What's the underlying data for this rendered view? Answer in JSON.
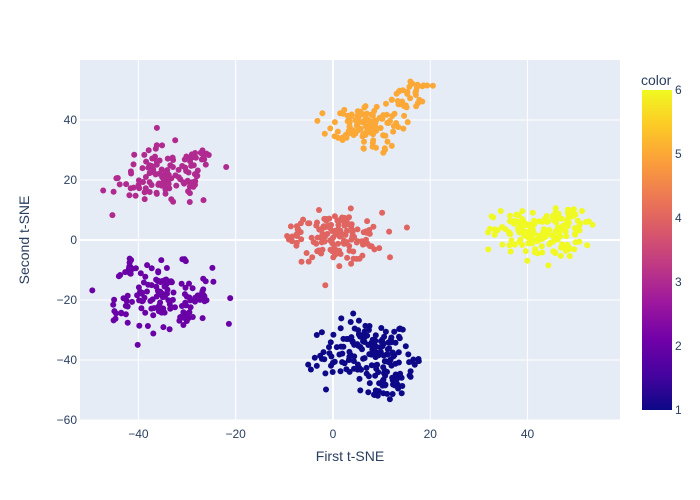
{
  "chart_data": {
    "type": "scatter",
    "xlabel": "First t-SNE",
    "ylabel": "Second t-SNE",
    "xlim": [
      -52,
      59
    ],
    "ylim": [
      -60,
      60
    ],
    "x_ticks": [
      -40,
      -20,
      0,
      20,
      40
    ],
    "y_ticks": [
      -60,
      -40,
      -20,
      0,
      20,
      40
    ],
    "x_tick_labels": [
      "−40",
      "−20",
      "0",
      "20",
      "40"
    ],
    "y_tick_labels": [
      "−60",
      "−40",
      "−20",
      "0",
      "20",
      "40"
    ],
    "grid": true,
    "colorbar": {
      "title": "color",
      "range": [
        1,
        6
      ],
      "ticks": [
        1,
        2,
        3,
        4,
        5,
        6
      ],
      "tick_labels": [
        "1",
        "2",
        "3",
        "4",
        "5",
        "6"
      ],
      "colorscale": [
        "#0d0887",
        "#46039f",
        "#7201a8",
        "#9c179e",
        "#bd3786",
        "#d8576b",
        "#ed7953",
        "#fb9f3a",
        "#fdca26",
        "#f0f921"
      ]
    },
    "clusters": [
      {
        "color_value": 1,
        "center": [
          7,
          -37
        ],
        "spread": [
          4.5,
          5
        ],
        "n": 140,
        "extra": [
          [
            13,
            -46,
            2.5,
            2,
            25
          ],
          [
            9,
            -51,
            3,
            1,
            15
          ],
          [
            -3,
            -40,
            1.5,
            1.5,
            8
          ],
          [
            17,
            -41,
            1,
            1.2,
            6
          ]
        ]
      },
      {
        "color_value": 2,
        "center": [
          -35,
          -18
        ],
        "spread": [
          5,
          5
        ],
        "n": 110,
        "extra": [
          [
            -42,
            -9,
            0.8,
            1.2,
            10
          ],
          [
            -44,
            -25,
            0.8,
            1.0,
            8
          ],
          [
            -30,
            -27,
            1.8,
            1.5,
            10
          ],
          [
            -28,
            -20,
            1.5,
            1.5,
            10
          ]
        ]
      },
      {
        "color_value": 3,
        "center": [
          -34,
          21
        ],
        "spread": [
          5,
          5
        ],
        "n": 110,
        "extra": [
          [
            -27,
            28,
            1.5,
            1.8,
            12
          ],
          [
            -41,
            17,
            1,
            1.5,
            8
          ]
        ]
      },
      {
        "color_value": 4,
        "center": [
          1,
          1
        ],
        "spread": [
          4.5,
          4
        ],
        "n": 140,
        "extra": [
          [
            -7,
            2,
            1.5,
            3,
            10
          ]
        ]
      },
      {
        "color_value": 5,
        "center": [
          7,
          39
        ],
        "spread": [
          3.5,
          3
        ],
        "n": 110,
        "extra": [
          [
            14,
            47,
            3,
            2.5,
            25
          ],
          [
            8,
            31,
            2,
            1,
            10
          ],
          [
            17,
            51,
            1.5,
            1,
            8
          ]
        ]
      },
      {
        "color_value": 6,
        "center": [
          42,
          2
        ],
        "spread": [
          4.5,
          4
        ],
        "n": 150,
        "extra": [
          [
            48,
            7,
            2.5,
            2,
            15
          ],
          [
            51,
            5,
            1.5,
            1.2,
            5
          ]
        ]
      }
    ]
  }
}
